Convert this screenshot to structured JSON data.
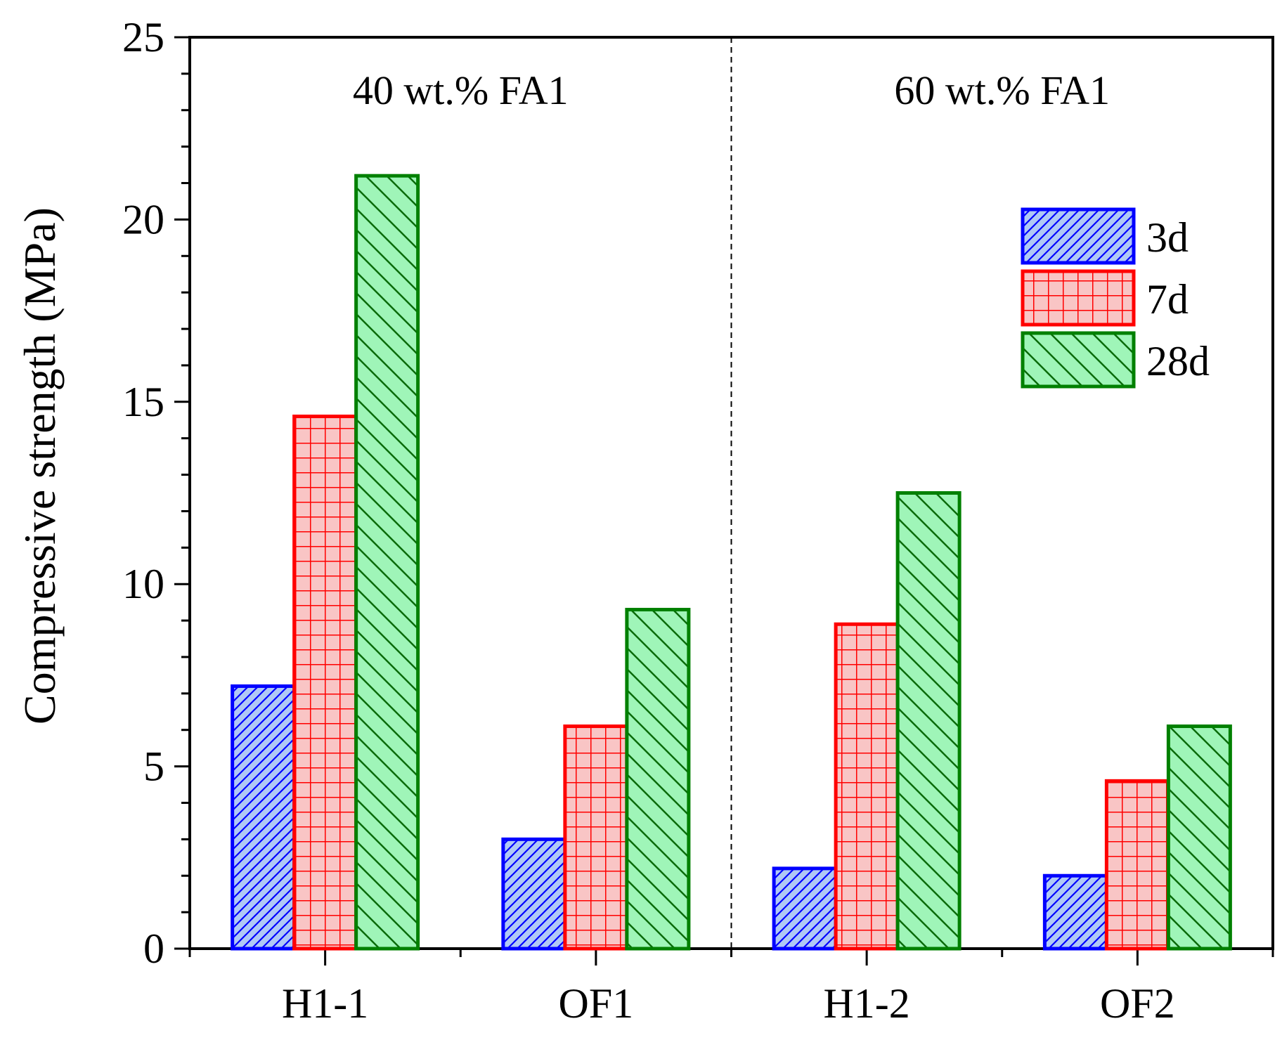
{
  "chart_data": {
    "type": "bar",
    "title": "",
    "xlabel": "",
    "ylabel": "Compressive strength (MPa)",
    "ylim": [
      0,
      25
    ],
    "yticks": [
      "0",
      "5",
      "10",
      "15",
      "20",
      "25"
    ],
    "categories": [
      "H1-1",
      "OF1",
      "H1-2",
      "OF2"
    ],
    "groups": [
      {
        "label": "40 wt.% FA1",
        "categories": [
          "H1-1",
          "OF1"
        ]
      },
      {
        "label": "60 wt.% FA1",
        "categories": [
          "H1-2",
          "OF2"
        ]
      }
    ],
    "series": [
      {
        "name": "3d",
        "values": [
          7.2,
          3.0,
          2.2,
          2.0
        ],
        "stroke": "#0000ff",
        "fill": "#b0c8f5",
        "pattern": "diagonal-up"
      },
      {
        "name": "7d",
        "values": [
          14.6,
          6.1,
          8.9,
          4.6
        ],
        "stroke": "#ff0000",
        "fill": "#f9c5c5",
        "pattern": "grid"
      },
      {
        "name": "28d",
        "values": [
          21.2,
          9.3,
          12.5,
          6.1
        ],
        "stroke": "#008000",
        "fill": "#9ff5b8",
        "pattern": "diagonal-down"
      }
    ],
    "legend_position": "top-right",
    "grid": false
  }
}
